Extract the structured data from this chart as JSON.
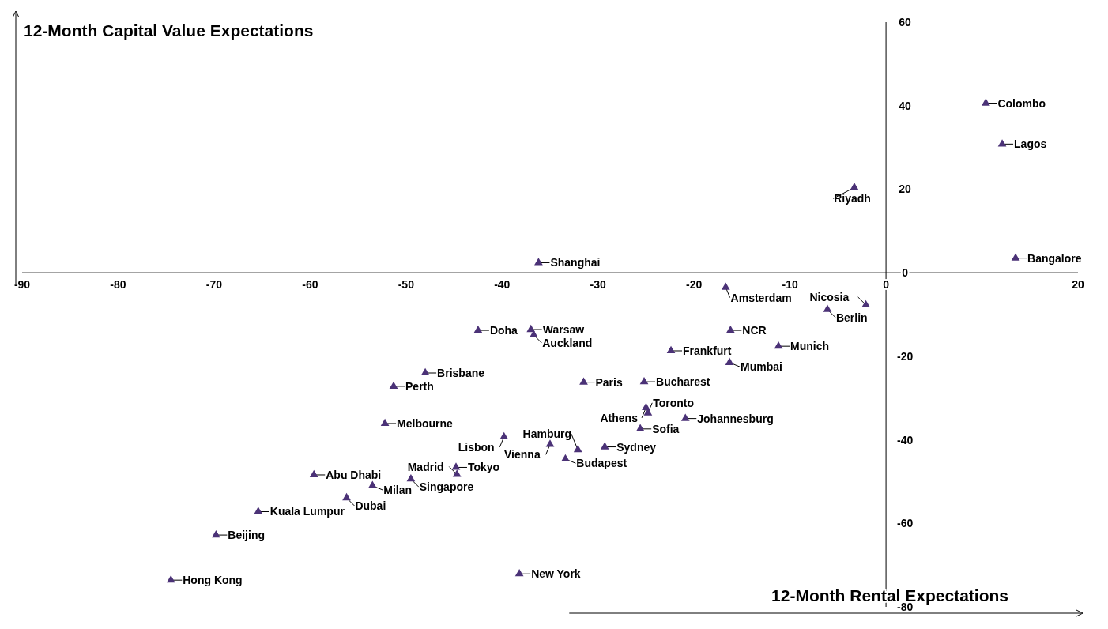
{
  "chart_data": {
    "type": "scatter",
    "xlabel": "12-Month Rental Expectations",
    "ylabel": "12-Month Capital Value Expectations",
    "xlim": [
      -90,
      20
    ],
    "ylim": [
      -80,
      60
    ],
    "xticks": [
      -90,
      -80,
      -70,
      -60,
      -50,
      -40,
      -30,
      -20,
      -10,
      0,
      20
    ],
    "yticks": [
      -80,
      -60,
      -40,
      -20,
      0,
      20,
      40,
      60
    ],
    "grid": false,
    "marker": "triangle",
    "series": [
      {
        "color": "#4b3277",
        "x": [
          10.4,
          12.1,
          -3.3,
          13.5,
          -36.2,
          -6.1,
          -2.1,
          -16.7,
          -16.2,
          -11.2,
          -22.4,
          -16.3,
          -42.5,
          -37.0,
          -36.7,
          -31.5,
          -25.2,
          -20.9,
          -25.6,
          -25.0,
          -24.8,
          -35.0,
          -33.4,
          -32.1,
          -29.3,
          -48.0,
          -51.3,
          -52.2,
          -39.8,
          -49.5,
          -44.7,
          -44.8,
          -53.5,
          -59.6,
          -56.2,
          -65.4,
          -69.8,
          -74.5,
          -38.2
        ],
        "values": [
          40.6,
          30.8,
          20.4,
          3.5,
          2.4,
          -8.8,
          -7.7,
          -3.5,
          -13.8,
          -17.6,
          -18.7,
          -21.5,
          -13.8,
          -13.6,
          -14.9,
          -26.2,
          -26.1,
          -34.9,
          -37.4,
          -32.3,
          -33.6,
          -41.1,
          -44.6,
          -42.4,
          -41.7,
          -24.0,
          -27.2,
          -36.1,
          -39.3,
          -49.4,
          -48.3,
          -46.6,
          -51.0,
          -48.4,
          -53.9,
          -57.2,
          -62.8,
          -73.6,
          -72.1
        ]
      }
    ],
    "annotations": [
      {
        "text": "Colombo",
        "x": 10.4,
        "y": 40.6
      },
      {
        "text": "Lagos",
        "x": 12.1,
        "y": 30.8
      },
      {
        "text": "Riyadh",
        "x": -3.3,
        "y": 20.4
      },
      {
        "text": "Bangalore",
        "x": 13.5,
        "y": 3.5
      },
      {
        "text": "Shanghai",
        "x": -36.2,
        "y": 2.4
      },
      {
        "text": "Berlin",
        "x": -6.1,
        "y": -8.8
      },
      {
        "text": "Nicosia",
        "x": -2.1,
        "y": -7.7
      },
      {
        "text": "Amsterdam",
        "x": -16.7,
        "y": -3.5
      },
      {
        "text": "NCR",
        "x": -16.2,
        "y": -13.8
      },
      {
        "text": "Munich",
        "x": -11.2,
        "y": -17.6
      },
      {
        "text": "Frankfurt",
        "x": -22.4,
        "y": -18.7
      },
      {
        "text": "Mumbai",
        "x": -16.3,
        "y": -21.5
      },
      {
        "text": "Doha",
        "x": -42.5,
        "y": -13.8
      },
      {
        "text": "Warsaw",
        "x": -37.0,
        "y": -13.6
      },
      {
        "text": "Auckland",
        "x": -36.7,
        "y": -14.9
      },
      {
        "text": "Paris",
        "x": -31.5,
        "y": -26.2
      },
      {
        "text": "Bucharest",
        "x": -25.2,
        "y": -26.1
      },
      {
        "text": "Johannesburg",
        "x": -20.9,
        "y": -34.9
      },
      {
        "text": "Sofia",
        "x": -25.6,
        "y": -37.4
      },
      {
        "text": "Athens",
        "x": -25.0,
        "y": -32.3
      },
      {
        "text": "Toronto",
        "x": -24.8,
        "y": -33.6
      },
      {
        "text": "Vienna",
        "x": -35.0,
        "y": -41.1
      },
      {
        "text": "Budapest",
        "x": -33.4,
        "y": -44.6
      },
      {
        "text": "Hamburg",
        "x": -32.1,
        "y": -42.4
      },
      {
        "text": "Sydney",
        "x": -29.3,
        "y": -41.7
      },
      {
        "text": "Brisbane",
        "x": -48.0,
        "y": -24.0
      },
      {
        "text": "Perth",
        "x": -51.3,
        "y": -27.2
      },
      {
        "text": "Melbourne",
        "x": -52.2,
        "y": -36.1
      },
      {
        "text": "Lisbon",
        "x": -39.8,
        "y": -39.3
      },
      {
        "text": "Singapore",
        "x": -49.5,
        "y": -49.4
      },
      {
        "text": "Madrid",
        "x": -44.7,
        "y": -48.3
      },
      {
        "text": "Tokyo",
        "x": -44.8,
        "y": -46.6
      },
      {
        "text": "Milan",
        "x": -53.5,
        "y": -51.0
      },
      {
        "text": "Abu Dhabi",
        "x": -59.6,
        "y": -48.4
      },
      {
        "text": "Dubai",
        "x": -56.2,
        "y": -53.9
      },
      {
        "text": "Kuala Lumpur",
        "x": -65.4,
        "y": -57.2
      },
      {
        "text": "Beijing",
        "x": -69.8,
        "y": -62.8
      },
      {
        "text": "Hong Kong",
        "x": -74.5,
        "y": -73.6
      },
      {
        "text": "New York",
        "x": -38.2,
        "y": -72.1
      }
    ]
  }
}
